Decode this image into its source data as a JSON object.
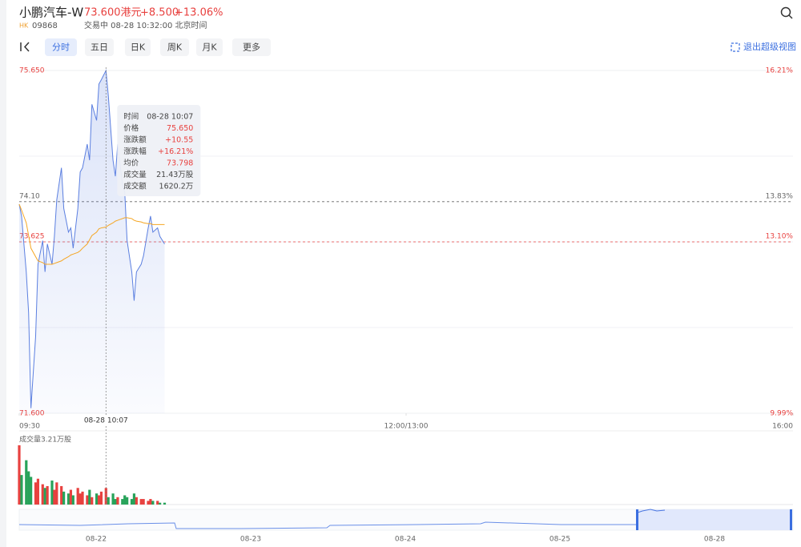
{
  "header": {
    "name": "小鹏汽车-W",
    "price": "73.600港元",
    "change": "+8.500",
    "change_pct": "+13.06%",
    "market": "HK",
    "code": "09868",
    "status": "交易中 08-28 10:32:00 北京时间"
  },
  "toolbar": {
    "tabs": [
      "分时",
      "五日",
      "日K",
      "周K",
      "月K",
      "更多"
    ],
    "exit": "退出超级视图"
  },
  "chart_data": {
    "type": "line",
    "x": [
      0,
      1,
      3,
      4,
      5,
      7,
      8,
      10,
      11,
      12,
      14,
      15,
      16,
      18,
      19,
      21,
      22,
      23,
      25,
      26,
      27,
      29,
      30,
      31,
      33,
      34,
      35,
      37,
      38,
      40,
      41,
      42,
      44,
      45,
      46,
      48,
      49,
      50,
      52,
      53,
      55,
      56,
      57,
      59,
      60,
      62
    ],
    "series": [
      {
        "color": "#5b7fe0",
        "values": [
          74.07,
          73.93,
          73.27,
          72.79,
          71.66,
          72.51,
          73.36,
          73.64,
          73.27,
          73.6,
          73.36,
          73.69,
          74.12,
          74.5,
          74.02,
          73.74,
          73.79,
          73.55,
          74.02,
          74.45,
          74.5,
          74.78,
          74.59,
          75.25,
          75.06,
          75.49,
          75.54,
          75.65,
          75.35,
          74.59,
          74.4,
          74.78,
          74.31,
          74.21,
          73.64,
          73.27,
          72.93,
          73.27,
          73.36,
          73.46,
          73.79,
          73.93,
          73.74,
          73.79,
          73.69,
          73.6
        ]
      },
      {
        "color": "#f5a623",
        "values": [
          74.07,
          74.0,
          73.85,
          73.7,
          73.55,
          73.45,
          73.4,
          73.38,
          73.36,
          73.36,
          73.36,
          73.37,
          73.38,
          73.4,
          73.42,
          73.45,
          73.47,
          73.48,
          73.5,
          73.52,
          73.55,
          73.6,
          73.65,
          73.7,
          73.74,
          73.78,
          73.79,
          73.8,
          73.82,
          73.85,
          73.87,
          73.88,
          73.9,
          73.91,
          73.91,
          73.9,
          73.88,
          73.87,
          73.86,
          73.85,
          73.84,
          73.84,
          73.83,
          73.83,
          73.83,
          73.83
        ]
      }
    ],
    "xlim": [
      0,
      330
    ],
    "xticks": [
      {
        "value": 0,
        "label": "09:30"
      },
      {
        "value": 165,
        "label": "12:00/13:00"
      },
      {
        "value": 330,
        "label": "16:00"
      }
    ],
    "ylim": [
      71.6,
      75.65
    ],
    "yticks": [
      {
        "value": 75.65,
        "label": "75.650"
      },
      {
        "value": 74.1,
        "label": "74.10"
      },
      73.625,
      {
        "value": 71.6,
        "label": "71.600"
      }
    ],
    "y_tick_colors": [
      "#e8413f",
      "#666666",
      "#e8413f",
      "#e8413f"
    ],
    "y2lim": [
      9.99,
      16.21
    ],
    "y2ticks": [
      {
        "value": 16.21,
        "label": "16.21%"
      },
      {
        "value": 13.83,
        "label": "13.83%"
      },
      {
        "value": 13.1,
        "label": "13.10%"
      },
      {
        "value": 9.99,
        "label": "9.99%"
      }
    ],
    "volume": {
      "label": "成交量3.21万股",
      "ylim": [
        0,
        3.21
      ],
      "up_color": "#e8413f",
      "down_color": "#27a35a",
      "values": [
        3.21,
        1.6,
        2.4,
        1.8,
        1.5,
        1.2,
        1.4,
        1.1,
        0.9,
        1.0,
        1.3,
        0.8,
        1.2,
        1.0,
        0.7,
        0.6,
        0.8,
        0.5,
        0.9,
        0.6,
        0.7,
        0.5,
        0.8,
        0.4,
        0.6,
        0.5,
        0.7,
        0.9,
        0.4,
        0.6,
        0.3,
        0.4,
        0.3,
        0.5,
        0.4,
        0.3,
        0.6,
        0.4,
        0.3,
        0.3,
        0.2,
        0.3,
        0.2,
        0.2,
        0.1,
        0.1
      ]
    },
    "crosshair": {
      "x": 37,
      "label": "08-28 10:07"
    },
    "tooltip": {
      "rows": [
        [
          "时间",
          "08-28 10:07"
        ],
        [
          "价格",
          "75.650"
        ],
        [
          "涨跌额",
          "+10.55"
        ],
        [
          "涨跌幅",
          "+16.21%"
        ],
        [
          "均价",
          "73.798"
        ],
        [
          "成交量",
          "21.43万股"
        ],
        [
          "成交额",
          "1620.2万"
        ]
      ],
      "value_colors": [
        "#444444",
        "#e8413f",
        "#e8413f",
        "#e8413f",
        "#e8413f",
        "#444444",
        "#444444"
      ]
    }
  },
  "navigator": {
    "dates": [
      "08-22",
      "08-23",
      "08-24",
      "08-25",
      "08-28"
    ]
  }
}
